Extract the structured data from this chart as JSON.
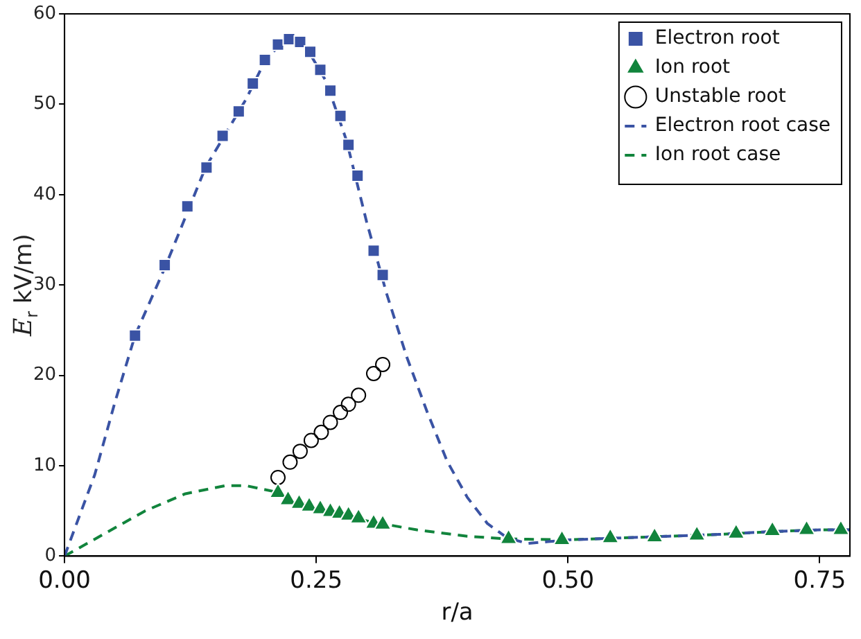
{
  "chart_data": {
    "type": "scatter",
    "xlabel": "r/a",
    "ylabel": "E$_{r}$ kV/m)",
    "xlim": [
      0,
      0.78
    ],
    "ylim": [
      0,
      60
    ],
    "xticks": [
      {
        "value": 0,
        "label": "0.00"
      },
      {
        "value": 0.25,
        "label": "0.25"
      },
      {
        "value": 0.5,
        "label": "0.50"
      },
      {
        "value": 0.75,
        "label": "0.75"
      }
    ],
    "yticks": [
      0,
      10,
      20,
      30,
      40,
      50,
      60
    ],
    "grid": false,
    "legend": "top right",
    "series": [
      {
        "name": "Electron root",
        "type": "scatter",
        "marker": "square",
        "color": "#3a53a4",
        "x": [
          0.07,
          0.0995,
          0.122,
          0.141,
          0.157,
          0.173,
          0.187,
          0.199,
          0.212,
          0.223,
          0.234,
          0.244,
          0.254,
          0.264,
          0.274,
          0.282,
          0.291,
          0.307,
          0.316
        ],
        "values": [
          24.4,
          32.2,
          38.7,
          43.0,
          46.5,
          49.2,
          52.3,
          54.9,
          56.6,
          57.2,
          56.9,
          55.8,
          53.8,
          51.5,
          48.7,
          45.5,
          42.1,
          33.8,
          31.1
        ]
      },
      {
        "name": "Ion root",
        "type": "scatter",
        "marker": "triangle",
        "color": "#11843c",
        "x": [
          0.212,
          0.222,
          0.233,
          0.243,
          0.254,
          0.264,
          0.273,
          0.282,
          0.292,
          0.307,
          0.316,
          0.441,
          0.494,
          0.542,
          0.586,
          0.628,
          0.667,
          0.703,
          0.737,
          0.771
        ],
        "values": [
          7.0,
          6.2,
          5.8,
          5.5,
          5.2,
          4.9,
          4.7,
          4.5,
          4.2,
          3.6,
          3.5,
          1.9,
          1.8,
          2.0,
          2.1,
          2.3,
          2.5,
          2.8,
          2.9,
          2.9
        ]
      },
      {
        "name": "Unstable root",
        "type": "scatter",
        "marker": "circle",
        "color": "#000000",
        "x": [
          0.212,
          0.224,
          0.234,
          0.245,
          0.255,
          0.264,
          0.274,
          0.282,
          0.292,
          0.307,
          0.316
        ],
        "values": [
          8.7,
          10.4,
          11.6,
          12.8,
          13.7,
          14.8,
          15.9,
          16.8,
          17.8,
          20.2,
          21.2
        ]
      },
      {
        "name": "Electron root case",
        "type": "line",
        "marker": "none",
        "line_style": "dashed",
        "color": "#3a53a4",
        "x": [
          0,
          0.03,
          0.05,
          0.07,
          0.1,
          0.14,
          0.18,
          0.2,
          0.22,
          0.24,
          0.26,
          0.28,
          0.3,
          0.32,
          0.34,
          0.36,
          0.38,
          0.4,
          0.42,
          0.44,
          0.46,
          0.48,
          0.5,
          0.55,
          0.6,
          0.65,
          0.7,
          0.75,
          0.78
        ],
        "values": [
          0,
          9,
          17,
          24.4,
          32,
          43,
          50.5,
          55,
          57.2,
          56.3,
          52.5,
          46,
          37,
          29,
          22,
          16,
          10.5,
          6.5,
          3.6,
          2.0,
          1.4,
          1.6,
          1.8,
          2.0,
          2.2,
          2.4,
          2.7,
          2.9,
          2.9
        ]
      },
      {
        "name": "Ion root case",
        "type": "line",
        "marker": "none",
        "line_style": "dashed",
        "color": "#11843c",
        "x": [
          0,
          0.04,
          0.08,
          0.12,
          0.16,
          0.18,
          0.21,
          0.25,
          0.3,
          0.35,
          0.4,
          0.44,
          0.5,
          0.55,
          0.6,
          0.65,
          0.7,
          0.75,
          0.78
        ],
        "values": [
          0,
          2.5,
          5,
          6.9,
          7.8,
          7.8,
          7.1,
          5.3,
          3.9,
          2.9,
          2.2,
          1.9,
          1.8,
          2.0,
          2.2,
          2.4,
          2.7,
          2.9,
          2.9
        ]
      }
    ]
  }
}
